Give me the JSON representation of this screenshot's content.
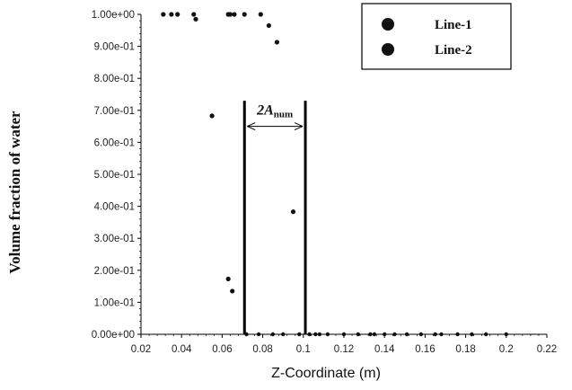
{
  "chart_data": {
    "type": "scatter",
    "xlabel": "Z-Coordinate (m)",
    "ylabel": "Volume fraction of water",
    "xlim": [
      0.02,
      0.22
    ],
    "ylim": [
      0,
      1
    ],
    "x_ticks": [
      0.02,
      0.04,
      0.06,
      0.08,
      0.1,
      0.12,
      0.14,
      0.16,
      0.18,
      0.2,
      0.22
    ],
    "x_tick_labels": [
      "0.02",
      "0.04",
      "0.06",
      "0.08",
      "0.1",
      "0.12",
      "0.14",
      "0.16",
      "0.18",
      "0.2",
      "0.22"
    ],
    "y_ticks": [
      0,
      0.1,
      0.2,
      0.3,
      0.4,
      0.5,
      0.6,
      0.7,
      0.8,
      0.9,
      1.0
    ],
    "y_tick_labels": [
      "0.00e+00",
      "1.00e-01",
      "2.00e-01",
      "3.00e-01",
      "4.00e-01",
      "5.00e-01",
      "6.00e-01",
      "7.00e-01",
      "8.00e-01",
      "9.00e-01",
      "1.00e+00"
    ],
    "grid": false,
    "legend_position": "top-right",
    "series": [
      {
        "name": "Line-1",
        "color": "#111111",
        "points": [
          [
            0.031,
            1.0
          ],
          [
            0.035,
            1.0
          ],
          [
            0.038,
            1.0
          ],
          [
            0.046,
            1.0
          ],
          [
            0.047,
            0.985
          ],
          [
            0.063,
            1.0
          ],
          [
            0.064,
            1.0
          ],
          [
            0.066,
            1.0
          ],
          [
            0.071,
            1.0
          ],
          [
            0.079,
            1.0
          ],
          [
            0.083,
            0.965
          ],
          [
            0.087,
            0.913
          ],
          [
            0.055,
            0.683
          ],
          [
            0.095,
            0.383
          ],
          [
            0.063,
            0.173
          ],
          [
            0.065,
            0.135
          ]
        ]
      },
      {
        "name": "Line-2",
        "color": "#111111",
        "points": [
          [
            0.072,
            0.0
          ],
          [
            0.078,
            0.0
          ],
          [
            0.085,
            0.0
          ],
          [
            0.09,
            0.0
          ],
          [
            0.098,
            0.0
          ],
          [
            0.103,
            0.0
          ],
          [
            0.106,
            0.0
          ],
          [
            0.108,
            0.0
          ],
          [
            0.112,
            0.0
          ],
          [
            0.12,
            0.0
          ],
          [
            0.127,
            0.0
          ],
          [
            0.133,
            0.0
          ],
          [
            0.135,
            0.0
          ],
          [
            0.14,
            0.0
          ],
          [
            0.145,
            0.0
          ],
          [
            0.151,
            0.0
          ],
          [
            0.158,
            0.0
          ],
          [
            0.165,
            0.0
          ],
          [
            0.168,
            0.0
          ],
          [
            0.176,
            0.0
          ],
          [
            0.183,
            0.0
          ],
          [
            0.19,
            0.0
          ],
          [
            0.2,
            0.0
          ]
        ]
      }
    ],
    "vertical_lines": [
      0.071,
      0.101
    ],
    "annotation": {
      "text_main": "2A",
      "text_sub": "num",
      "arrow_from": 0.071,
      "arrow_to": 0.101,
      "y": 0.65
    }
  }
}
